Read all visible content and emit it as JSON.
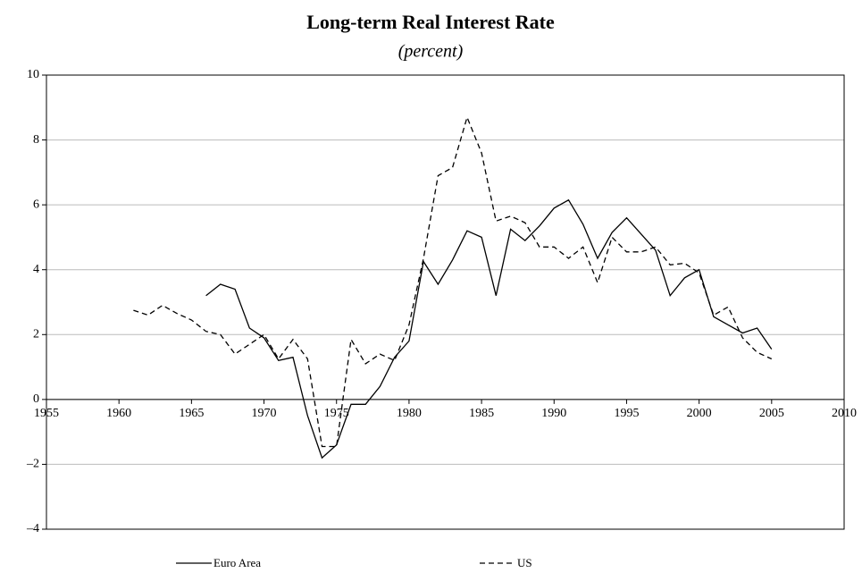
{
  "chart_data": {
    "type": "line",
    "title": "Long-term Real Interest Rate",
    "subtitle": "(percent)",
    "x": [
      1961,
      1962,
      1963,
      1964,
      1965,
      1966,
      1967,
      1968,
      1969,
      1970,
      1971,
      1972,
      1973,
      1974,
      1975,
      1976,
      1977,
      1978,
      1979,
      1980,
      1981,
      1982,
      1983,
      1984,
      1985,
      1986,
      1987,
      1988,
      1989,
      1990,
      1991,
      1992,
      1993,
      1994,
      1995,
      1996,
      1997,
      1998,
      1999,
      2000,
      2001,
      2002,
      2003,
      2004,
      2005
    ],
    "series": [
      {
        "name": "Euro Area",
        "color": "#000000",
        "dash": "solid",
        "values": [
          null,
          null,
          null,
          null,
          null,
          3.2,
          3.55,
          3.4,
          2.2,
          1.9,
          1.2,
          1.3,
          -0.5,
          -1.8,
          -1.4,
          -0.15,
          -0.15,
          0.4,
          1.3,
          1.8,
          4.25,
          3.55,
          4.3,
          5.2,
          5.0,
          3.2,
          5.25,
          4.9,
          5.35,
          5.9,
          6.15,
          5.4,
          4.35,
          5.15,
          5.6,
          5.1,
          4.6,
          3.2,
          3.75,
          4.0,
          2.55,
          2.3,
          2.05,
          2.2,
          1.55
        ]
      },
      {
        "name": "US",
        "color": "#000000",
        "dash": "dashed",
        "values": [
          2.75,
          2.6,
          2.9,
          2.65,
          2.45,
          2.1,
          2.0,
          1.4,
          1.7,
          2.0,
          1.25,
          1.85,
          1.25,
          -1.45,
          -1.45,
          1.85,
          1.1,
          1.4,
          1.2,
          2.3,
          4.35,
          6.9,
          7.15,
          8.7,
          7.6,
          5.5,
          5.65,
          5.45,
          4.7,
          4.7,
          4.35,
          4.7,
          3.6,
          5.0,
          4.55,
          4.55,
          4.7,
          4.15,
          4.2,
          3.9,
          2.6,
          2.85,
          1.9,
          1.45,
          1.25
        ]
      }
    ],
    "xlim": [
      1955,
      2010
    ],
    "xticks": [
      1955,
      1960,
      1965,
      1970,
      1975,
      1980,
      1985,
      1990,
      1995,
      2000,
      2005,
      2010
    ],
    "ylim": [
      -4,
      10
    ],
    "yticks": [
      {
        "value": -4,
        "label": "–4"
      },
      {
        "value": -2,
        "label": "–2"
      },
      0,
      2,
      4,
      6,
      8,
      10
    ],
    "grid": true,
    "legend": "bottom"
  }
}
